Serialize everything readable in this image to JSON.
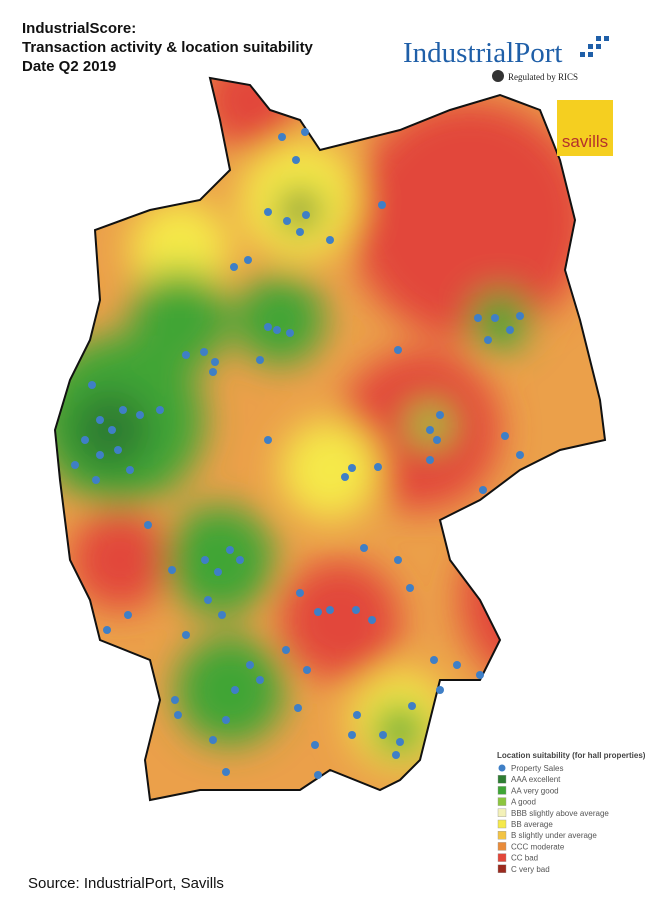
{
  "header": {
    "title_lines": [
      "IndustrialScore:",
      "Transaction activity & location suitability",
      "Date Q2 2019"
    ]
  },
  "logos": {
    "industrialport": "IndustrialPort",
    "regulation": "Regulated by RICS",
    "savills": "savills"
  },
  "legend": {
    "title": "Location suitability (for hall properties)",
    "items": [
      {
        "label": "Property Sales",
        "color": "#3f7fc6",
        "shape": "circle"
      },
      {
        "label": "AAA excellent",
        "color": "#2e7d32",
        "shape": "square"
      },
      {
        "label": "AA very good",
        "color": "#3fa535",
        "shape": "square"
      },
      {
        "label": "A good",
        "color": "#8cc63f",
        "shape": "square"
      },
      {
        "label": "BBB slightly above average",
        "color": "#f3f1b8",
        "shape": "square"
      },
      {
        "label": "BB average",
        "color": "#f5e94a",
        "shape": "square"
      },
      {
        "label": "B slightly under average",
        "color": "#f3c444",
        "shape": "square"
      },
      {
        "label": "CCC moderate",
        "color": "#e98b3a",
        "shape": "square"
      },
      {
        "label": "CC bad",
        "color": "#e2463a",
        "shape": "square"
      },
      {
        "label": "C very bad",
        "color": "#9b2a1e",
        "shape": "square"
      }
    ]
  },
  "footer": {
    "source": "Source: IndustrialPort, Savills"
  }
}
